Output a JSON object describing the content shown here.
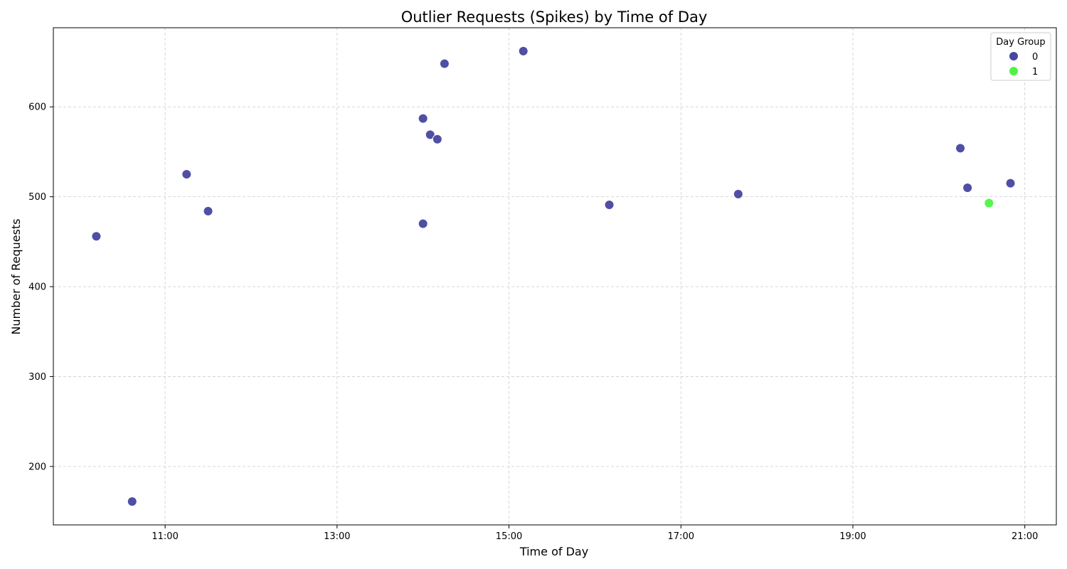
{
  "chart_data": {
    "type": "scatter",
    "title": "Outlier Requests (Spikes) by Time of Day",
    "xlabel": "Time of Day",
    "ylabel": "Number of Requests",
    "x_unit": "time of day (HH:MM)",
    "xlim": [
      "09:42",
      "21:22"
    ],
    "ylim": [
      135,
      688
    ],
    "x_ticks": [
      "11:00",
      "13:00",
      "15:00",
      "17:00",
      "19:00",
      "21:00"
    ],
    "y_ticks": [
      200,
      300,
      400,
      500,
      600
    ],
    "grid": true,
    "legend": {
      "title": "Day Group",
      "position": "top-right",
      "entries": [
        {
          "label": "0",
          "color": "#4646a0"
        },
        {
          "label": "1",
          "color": "#4cf542"
        }
      ]
    },
    "series": [
      {
        "name": "0",
        "color": "#4646a0",
        "points": [
          {
            "x": "10:12",
            "y": 456
          },
          {
            "x": "10:37",
            "y": 161
          },
          {
            "x": "11:15",
            "y": 525
          },
          {
            "x": "11:30",
            "y": 484
          },
          {
            "x": "14:00",
            "y": 587
          },
          {
            "x": "14:00",
            "y": 470
          },
          {
            "x": "14:05",
            "y": 569
          },
          {
            "x": "14:10",
            "y": 564
          },
          {
            "x": "14:15",
            "y": 648
          },
          {
            "x": "15:10",
            "y": 662
          },
          {
            "x": "16:10",
            "y": 491
          },
          {
            "x": "17:40",
            "y": 503
          },
          {
            "x": "20:15",
            "y": 554
          },
          {
            "x": "20:20",
            "y": 510
          },
          {
            "x": "20:50",
            "y": 515
          }
        ]
      },
      {
        "name": "1",
        "color": "#4cf542",
        "points": [
          {
            "x": "20:35",
            "y": 493
          }
        ]
      }
    ]
  }
}
